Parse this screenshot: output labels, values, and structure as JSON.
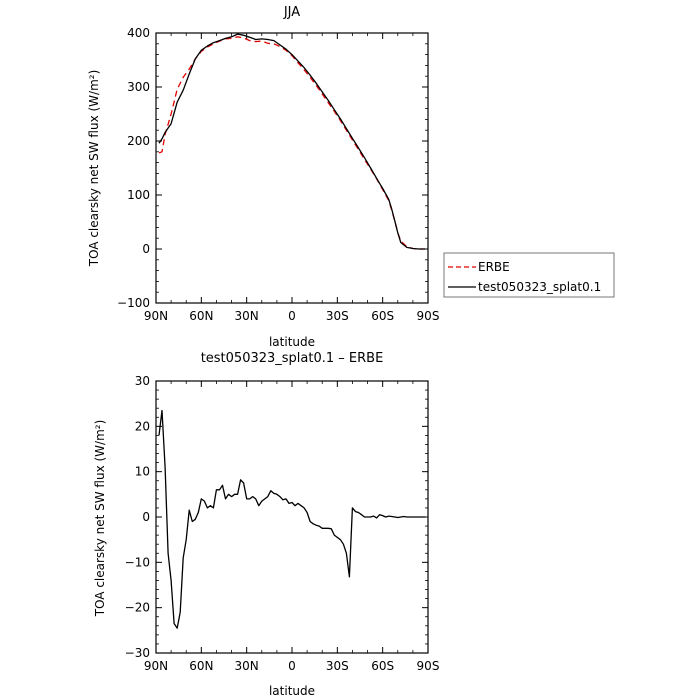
{
  "chart_data": [
    {
      "type": "line",
      "title": "JJA",
      "xlabel": "latitude",
      "ylabel": "TOA clearsky net SW flux (W/m²)",
      "x_ticks": [
        "90N",
        "60N",
        "30N",
        "0",
        "30S",
        "60S",
        "90S"
      ],
      "x_tick_values": [
        90,
        60,
        30,
        0,
        -30,
        -60,
        -90
      ],
      "xlim": [
        90,
        -90
      ],
      "ylim": [
        -100,
        400
      ],
      "y_ticks": [
        400,
        300,
        200,
        100,
        0,
        -100
      ],
      "grid": false,
      "legend_placement": "right-outside",
      "series": [
        {
          "name": "ERBE",
          "color": "#e00000",
          "dash": "dashed",
          "x": [
            88,
            86,
            84,
            80,
            76,
            72,
            68,
            64,
            60,
            56,
            52,
            48,
            44,
            40,
            36,
            32,
            28,
            24,
            20,
            16,
            12,
            8,
            4,
            0,
            -4,
            -8,
            -12,
            -16,
            -20,
            -24,
            -28,
            -32,
            -36,
            -40,
            -44,
            -48,
            -52,
            -56,
            -60,
            -64,
            -66,
            -68,
            -70,
            -72,
            -76,
            -80,
            -84,
            -88
          ],
          "y": [
            178,
            180,
            212,
            250,
            296,
            318,
            333,
            352,
            366,
            374,
            380,
            385,
            389,
            390,
            393,
            391,
            386,
            384,
            385,
            381,
            380,
            375,
            368,
            358,
            345,
            332,
            318,
            303,
            287,
            271,
            255,
            238,
            220,
            202,
            184,
            166,
            148,
            130,
            110,
            90,
            72,
            52,
            30,
            15,
            4,
            1,
            0,
            0
          ]
        },
        {
          "name": "test050323_splat0.1",
          "color": "#000000",
          "dash": "solid",
          "x": [
            88,
            86,
            84,
            80,
            76,
            72,
            68,
            64,
            60,
            56,
            52,
            48,
            44,
            40,
            36,
            32,
            28,
            24,
            20,
            16,
            12,
            8,
            4,
            0,
            -4,
            -8,
            -12,
            -16,
            -20,
            -24,
            -28,
            -32,
            -36,
            -40,
            -44,
            -48,
            -52,
            -56,
            -60,
            -64,
            -66,
            -68,
            -70,
            -72,
            -76,
            -80,
            -84,
            -88
          ],
          "y": [
            196,
            204,
            216,
            232,
            272,
            294,
            324,
            352,
            368,
            376,
            382,
            386,
            390,
            393,
            398,
            396,
            392,
            388,
            389,
            388,
            386,
            378,
            370,
            360,
            348,
            336,
            322,
            307,
            291,
            275,
            258,
            241,
            223,
            205,
            187,
            169,
            150,
            131,
            112,
            92,
            74,
            52,
            30,
            12,
            3,
            1,
            0,
            0
          ]
        }
      ]
    },
    {
      "type": "line",
      "title": "test050323_splat0.1 – ERBE",
      "xlabel": "latitude",
      "ylabel": "TOA clearsky net SW flux (W/m²)",
      "x_ticks": [
        "90N",
        "60N",
        "30N",
        "0",
        "30S",
        "60S",
        "90S"
      ],
      "x_tick_values": [
        90,
        60,
        30,
        0,
        -30,
        -60,
        -90
      ],
      "xlim": [
        90,
        -90
      ],
      "ylim": [
        -30,
        30
      ],
      "y_ticks": [
        30,
        20,
        10,
        0,
        -10,
        -20,
        -30
      ],
      "grid": false,
      "series": [
        {
          "color": "#000000",
          "dash": "solid",
          "x": [
            88,
            86,
            84,
            82,
            80,
            78,
            76,
            74,
            72,
            70,
            68,
            66,
            64,
            62,
            60,
            58,
            56,
            54,
            52,
            50,
            48,
            46,
            44,
            42,
            40,
            38,
            36,
            34,
            32,
            30,
            28,
            26,
            24,
            22,
            20,
            18,
            16,
            14,
            12,
            10,
            8,
            6,
            4,
            2,
            0,
            -2,
            -4,
            -6,
            -8,
            -10,
            -12,
            -14,
            -16,
            -18,
            -20,
            -22,
            -24,
            -26,
            -28,
            -30,
            -32,
            -34,
            -36,
            -38,
            -40,
            -42,
            -44,
            -46,
            -48,
            -50,
            -52,
            -54,
            -56,
            -58,
            -60,
            -62,
            -64,
            -66,
            -68,
            -70,
            -72,
            -74,
            -76,
            -78,
            -80,
            -82,
            -84,
            -86,
            -88
          ],
          "y": [
            18,
            23.5,
            11,
            -8,
            -14,
            -23.5,
            -24.5,
            -21,
            -9,
            -5,
            1.5,
            -1,
            -0.5,
            1,
            4,
            3.5,
            2,
            2.5,
            2,
            6,
            6,
            7,
            4,
            5,
            4.5,
            5,
            5,
            8.2,
            7.5,
            4,
            4,
            4.5,
            4,
            2.5,
            3.5,
            4,
            4.5,
            5.8,
            5.2,
            5,
            4.5,
            3.8,
            4,
            3,
            3.2,
            2.5,
            3,
            2.5,
            2,
            1,
            -1,
            -1.5,
            -1.8,
            -2,
            -2.5,
            -2.5,
            -2.5,
            -2.6,
            -4,
            -4.5,
            -5,
            -6,
            -8,
            -13.2,
            2,
            1.2,
            1,
            0.5,
            0,
            0,
            0,
            0.2,
            -0.2,
            0.5,
            0.3,
            0,
            0.2,
            0.1,
            0,
            -0.1,
            0,
            0.1,
            0,
            0,
            0,
            0,
            0,
            0,
            0
          ]
        }
      ]
    }
  ]
}
